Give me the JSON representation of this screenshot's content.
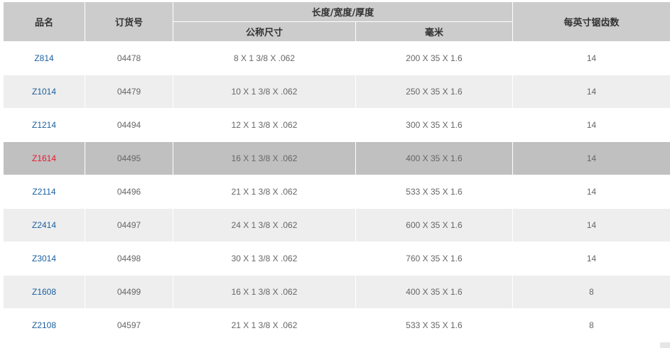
{
  "header": {
    "name": "品名",
    "order_no": "订货号",
    "dimensions": "长度/宽度/厚度",
    "nominal": "公称尺寸",
    "mm": "毫米",
    "tpi": "每英寸锯齿数"
  },
  "highlight_color": "#e8192c",
  "link_color": "#1a5f9e",
  "rows": [
    {
      "name": "Z814",
      "order": "04478",
      "nominal": "8 X 1 3/8 X .062",
      "mm": "200 X 35 X 1.6",
      "tpi": "14"
    },
    {
      "name": "Z1014",
      "order": "04479",
      "nominal": "10 X 1 3/8 X .062",
      "mm": "250 X 35 X 1.6",
      "tpi": "14"
    },
    {
      "name": "Z1214",
      "order": "04494",
      "nominal": "12 X 1 3/8 X .062",
      "mm": "300 X 35 X 1.6",
      "tpi": "14"
    },
    {
      "name": "Z1614",
      "order": "04495",
      "nominal": "16 X 1 3/8 X .062",
      "mm": "400 X 35 X 1.6",
      "tpi": "14",
      "highlighted": true
    },
    {
      "name": "Z2114",
      "order": "04496",
      "nominal": "21 X 1 3/8 X .062",
      "mm": "533 X 35 X 1.6",
      "tpi": "14"
    },
    {
      "name": "Z2414",
      "order": "04497",
      "nominal": "24 X 1 3/8 X .062",
      "mm": "600 X 35 X 1.6",
      "tpi": "14"
    },
    {
      "name": "Z3014",
      "order": "04498",
      "nominal": "30 X 1 3/8 X .062",
      "mm": "760 X 35 X 1.6",
      "tpi": "14"
    },
    {
      "name": "Z1608",
      "order": "04499",
      "nominal": "16 X 1 3/8 X .062",
      "mm": "400 X 35 X 1.6",
      "tpi": "8"
    },
    {
      "name": "Z2108",
      "order": "04597",
      "nominal": "21 X 1 3/8 X .062",
      "mm": "533 X 35 X 1.6",
      "tpi": "8"
    }
  ]
}
